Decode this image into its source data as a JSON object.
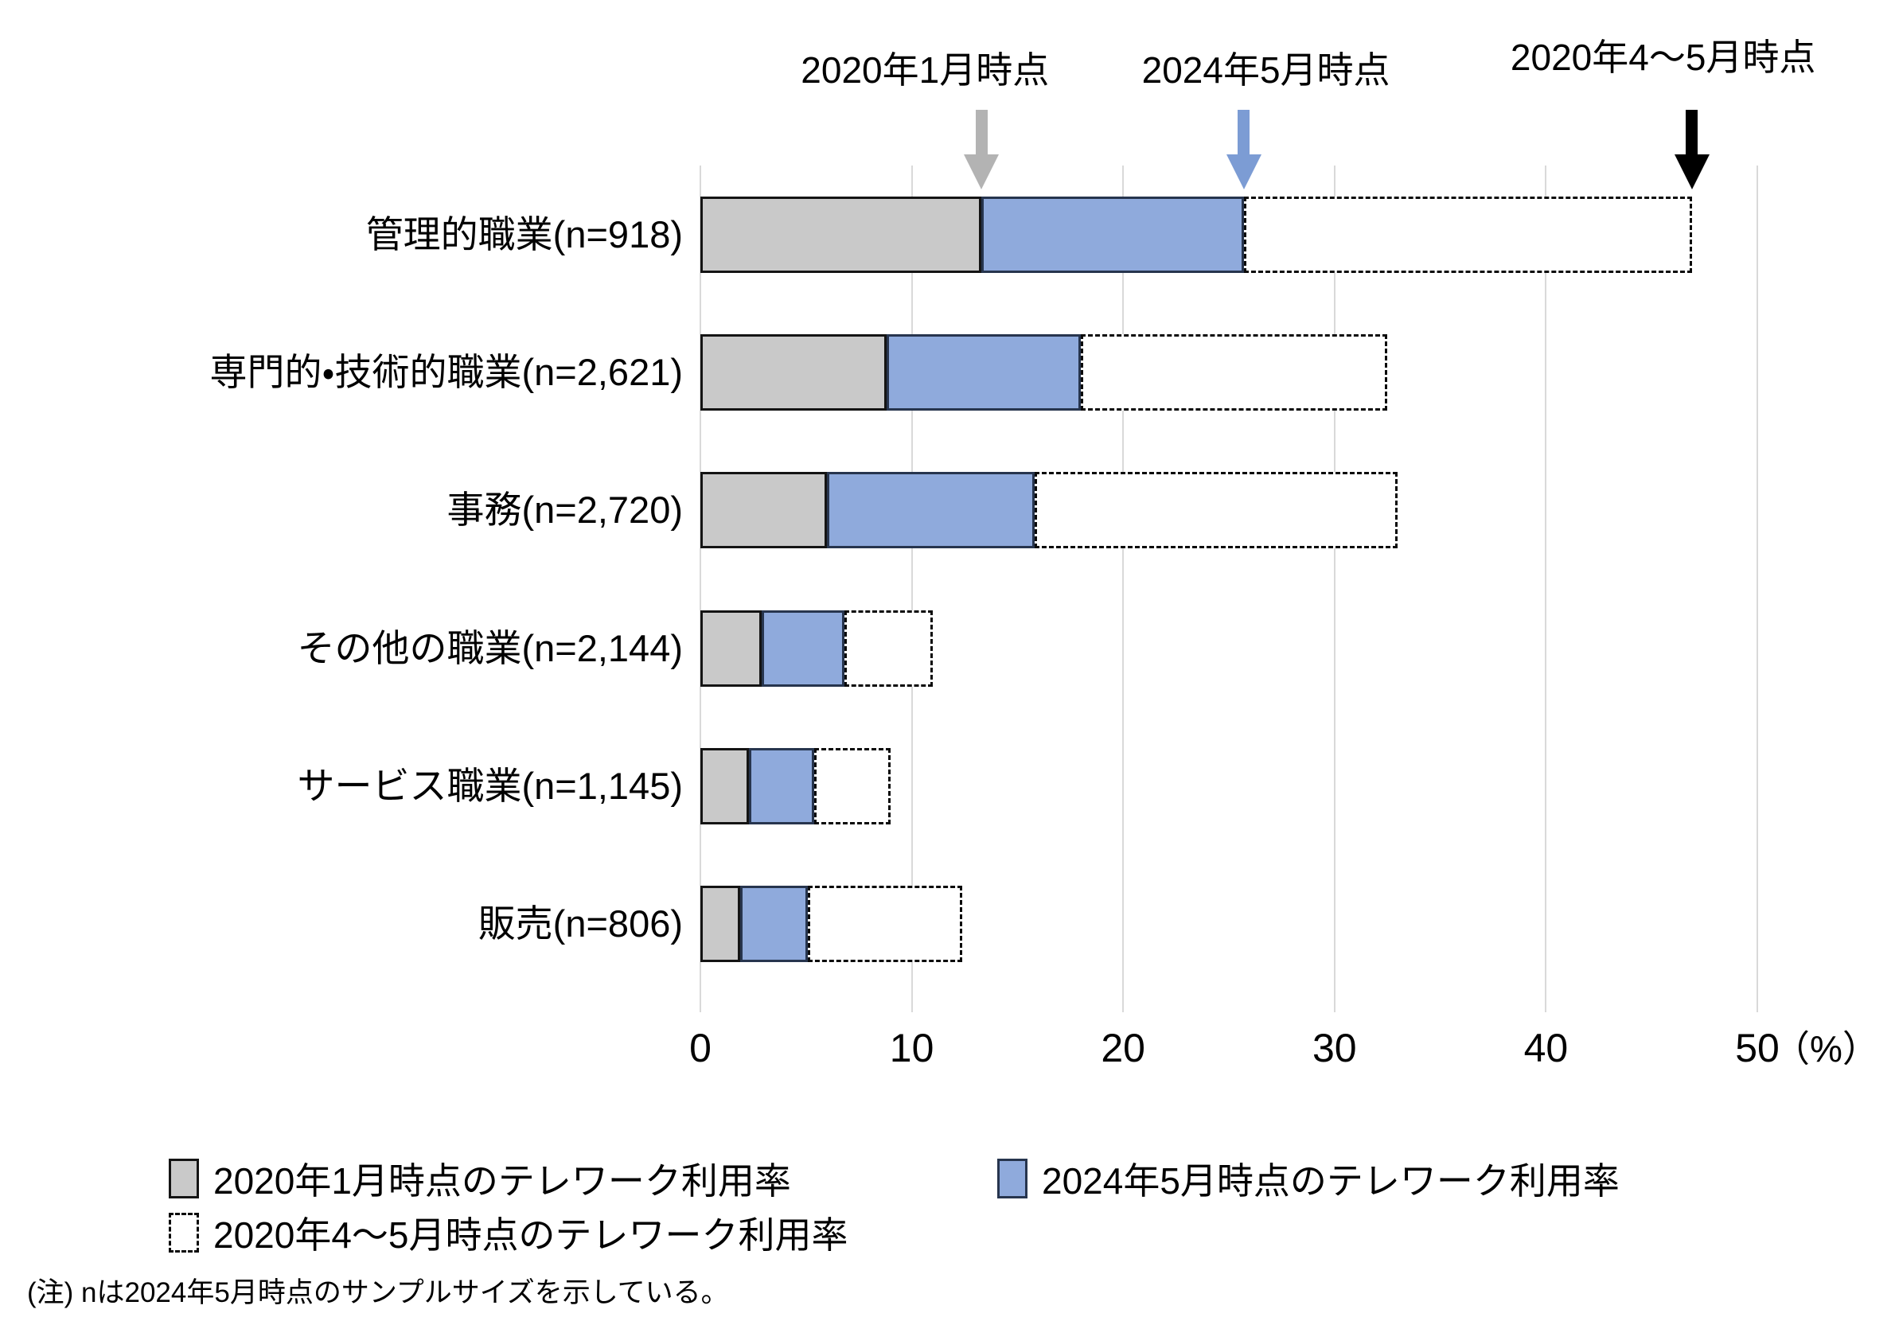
{
  "note": "(注) nは2024年5月時点のサンプルサイズを示している。",
  "colors": {
    "bar_gray": "#c9c9c9",
    "bar_blue": "#8faadc",
    "blue_border": "#27354e",
    "gridline": "#d9d9d9",
    "arrow_gray": "#b3b3b3",
    "arrow_blue": "#7c9cd4",
    "arrow_black": "#000000"
  },
  "chart_data": {
    "type": "bar",
    "orientation": "horizontal",
    "title": "",
    "xlabel": "",
    "ylabel": "",
    "axis_unit_label": "（%）",
    "xlim": [
      0,
      50
    ],
    "xticks": [
      0,
      10,
      20,
      30,
      40,
      50
    ],
    "grid": true,
    "categories": [
      "管理的職業(n=918)",
      "専門的・技術的職業(n=2,621)",
      "事務(n=2,720)",
      "その他の職業(n=2,144)",
      "サービス職業(n=1,145)",
      "販売(n=806)"
    ],
    "series": [
      {
        "name": "2020年1月時点のテレワーク利用率",
        "style": "gray-solid",
        "values": [
          13.3,
          8.8,
          6.0,
          2.9,
          2.3,
          1.9
        ]
      },
      {
        "name": "2024年5月時点のテレワーク利用率",
        "style": "blue-solid",
        "values": [
          25.7,
          18.0,
          15.8,
          6.8,
          5.4,
          5.1
        ]
      },
      {
        "name": "2020年4〜5月時点のテレワーク利用率",
        "style": "white-dashed",
        "values": [
          46.9,
          32.5,
          33.0,
          11.0,
          9.0,
          12.4
        ]
      }
    ],
    "annotations": [
      {
        "label": "2020年1月時点",
        "value": 13.3,
        "arrow": "gray"
      },
      {
        "label": "2024年5月時点",
        "value": 25.7,
        "arrow": "blue"
      },
      {
        "label": "2020年4〜5月時点",
        "value": 46.9,
        "arrow": "black"
      }
    ],
    "legend_position": "bottom"
  },
  "legend": {
    "items": [
      {
        "label": "2020年1月時点のテレワーク利用率",
        "swatch": "gray",
        "col": 0,
        "row": 0
      },
      {
        "label": "2024年5月時点のテレワーク利用率",
        "swatch": "blue",
        "col": 1,
        "row": 0
      },
      {
        "label": "2020年4〜5月時点のテレワーク利用率",
        "swatch": "dash",
        "col": 0,
        "row": 1
      }
    ]
  }
}
